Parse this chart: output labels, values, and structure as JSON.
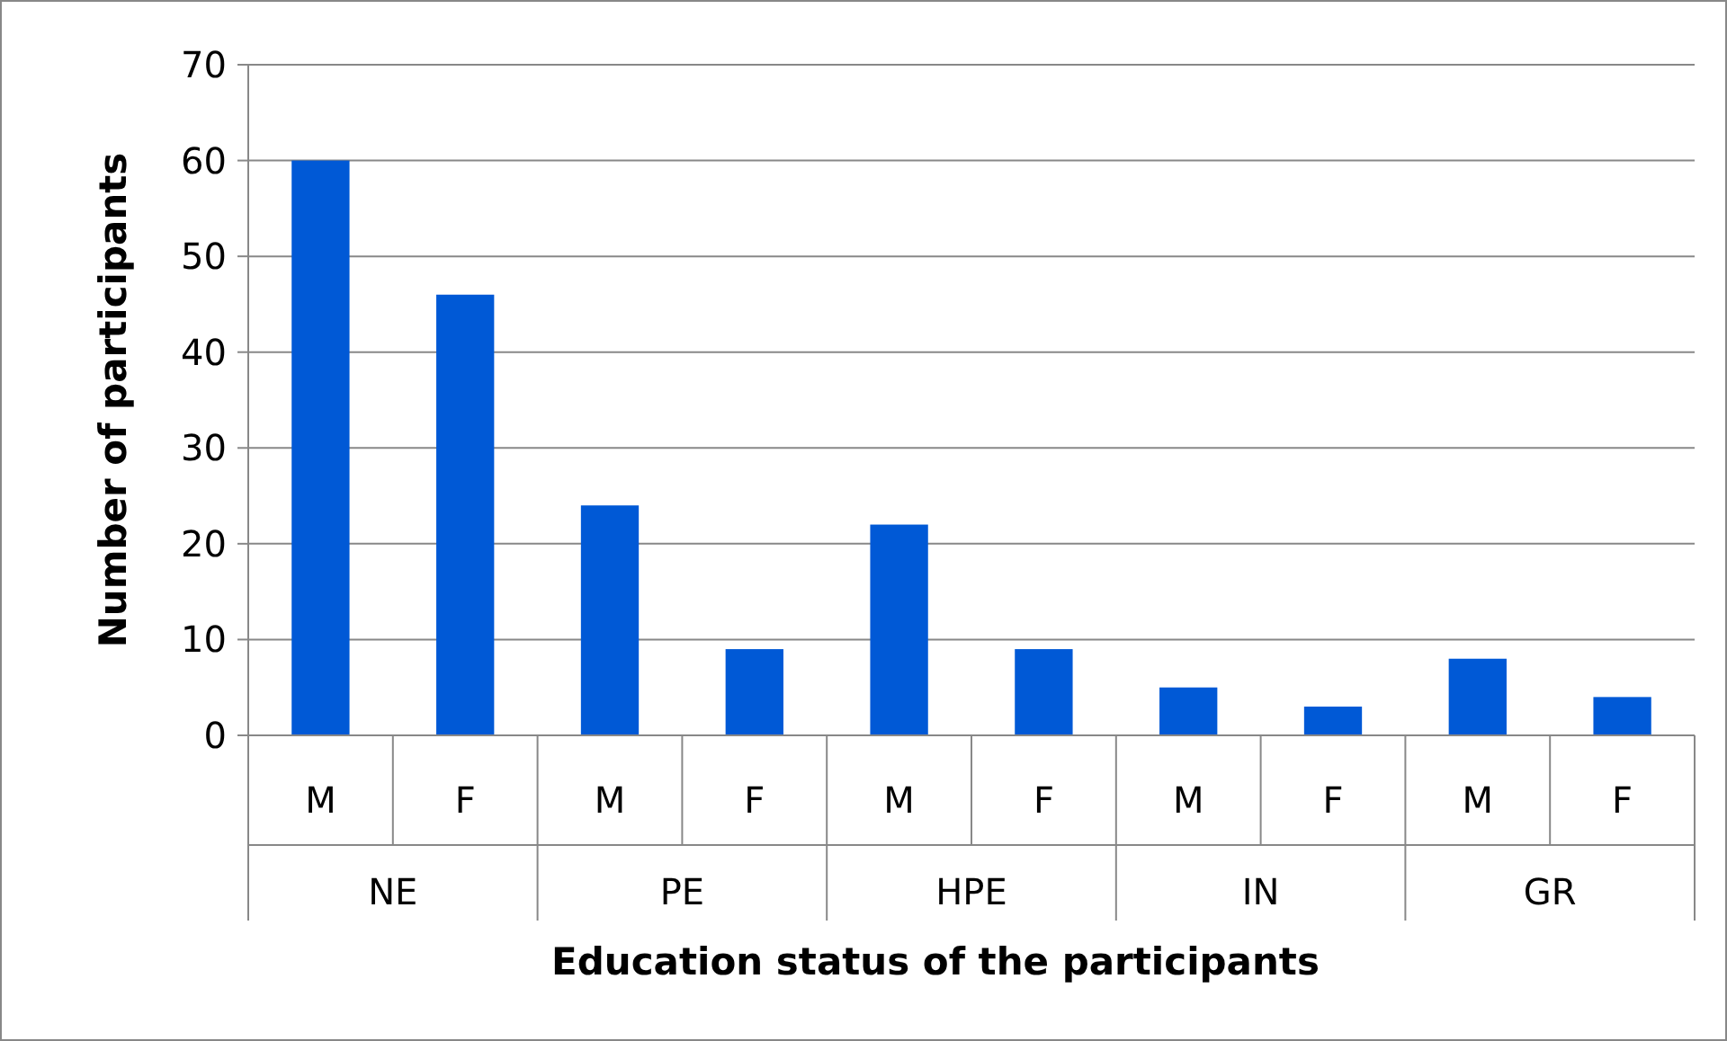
{
  "chart_data": {
    "type": "bar",
    "xlabel": "Education status of the participants",
    "ylabel": "Number of participants",
    "categories": [
      "M",
      "F",
      "M",
      "F",
      "M",
      "F",
      "M",
      "F",
      "M",
      "F"
    ],
    "values": [
      60,
      46,
      24,
      9,
      22,
      9,
      5,
      3,
      8,
      4
    ],
    "color": "#0059d6",
    "ylim": [
      0,
      70
    ],
    "yticks": [
      0,
      10,
      20,
      30,
      40,
      50,
      60,
      70
    ],
    "grid": "y",
    "annotations": [
      "NE",
      "PE",
      "HPE",
      "IN",
      "GR"
    ]
  }
}
